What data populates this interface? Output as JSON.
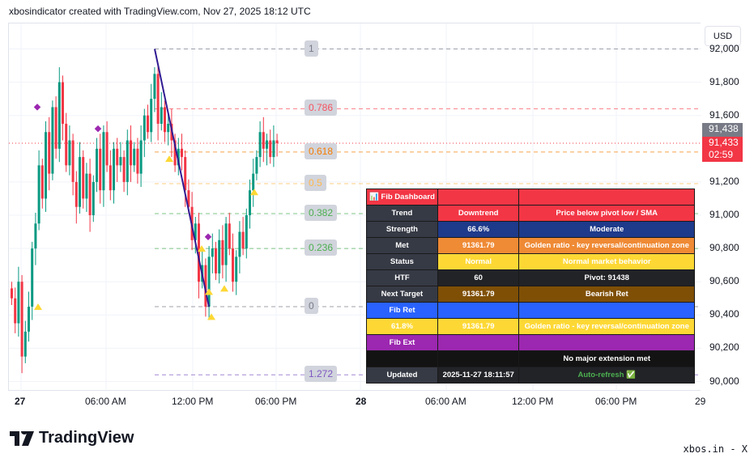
{
  "title": "xbosindicator created with TradingView.com, Nov 27, 2025 18:12 UTC",
  "currency": "USD",
  "price_axis": [
    "92,000",
    "91,800",
    "91,600",
    "91,200",
    "91,000",
    "90,800",
    "90,600",
    "90,400",
    "90,200",
    "90,000"
  ],
  "price_axis_values": [
    92000,
    91800,
    91600,
    91200,
    91000,
    90800,
    90600,
    90400,
    90200,
    90000
  ],
  "pivot_tag": "91,438",
  "last_price_tag": "91,433",
  "countdown": "02:59",
  "time_axis": [
    "27",
    "06:00 AM",
    "12:00 PM",
    "06:00 PM",
    "28",
    "06:00 AM",
    "12:00 PM",
    "06:00 PM",
    "29"
  ],
  "fib_levels": [
    {
      "label": "1",
      "price": 92000,
      "color": "#787b86"
    },
    {
      "label": "0.786",
      "price": 91640,
      "color": "#f7525f"
    },
    {
      "label": "0.618",
      "price": 91380,
      "color": "#f57c00"
    },
    {
      "label": "0.5",
      "price": 91190,
      "color": "#ffb74d"
    },
    {
      "label": "0.382",
      "price": 91010,
      "color": "#4caf50"
    },
    {
      "label": "0.236",
      "price": 90800,
      "color": "#4caf50"
    },
    {
      "label": "0",
      "price": 90450,
      "color": "#787b86"
    },
    {
      "label": "1.272",
      "price": 90040,
      "color": "#7e57c2"
    }
  ],
  "closes": [
    90500,
    90350,
    90600,
    90150,
    90300,
    90450,
    90800,
    90950,
    91300,
    91100,
    91500,
    91250,
    91650,
    91400,
    91800,
    91550,
    91300,
    91450,
    91200,
    91050,
    91350,
    91100,
    91250,
    91000,
    91200,
    91400,
    91150,
    91500,
    91300,
    91150,
    91400,
    91300,
    91350,
    91200,
    91450,
    91300,
    91400,
    91250,
    91450,
    91600,
    91500,
    91700,
    91850,
    91550,
    91650,
    91500,
    91550,
    91450,
    91300,
    91400,
    91350,
    91150,
    91050,
    90850,
    90950,
    90600,
    90700,
    90450,
    90750,
    90800,
    90650,
    90850,
    90700,
    90950,
    90800,
    90600,
    90750,
    90900,
    90800,
    91000,
    91150,
    91250,
    91350,
    91500,
    91400,
    91450,
    91350,
    91450,
    91433
  ],
  "colors": {
    "up": "#089981",
    "down": "#f23645",
    "pivot": "#787b86",
    "last": "#f23645"
  },
  "dashboard": {
    "rows": [
      {
        "c": [
          "📊 Fib Dashboard",
          "",
          ""
        ],
        "bg": [
          "#f23645",
          "#f23645",
          "#f23645"
        ]
      },
      {
        "c": [
          "Trend",
          "Downtrend",
          "Price below pivot low / SMA"
        ],
        "bg": [
          "#363a45",
          "#f23645",
          "#f23645"
        ]
      },
      {
        "c": [
          "Strength",
          "66.6%",
          "Moderate"
        ],
        "bg": [
          "#363a45",
          "#1e3a8a",
          "#1e3a8a"
        ]
      },
      {
        "c": [
          "Met",
          "91361.79",
          "Golden ratio - key reversal/continuation zone"
        ],
        "bg": [
          "#363a45",
          "#ef8a35",
          "#ef8a35"
        ]
      },
      {
        "c": [
          "Status",
          "Normal",
          "Normal market behavior"
        ],
        "bg": [
          "#363a45",
          "#fdd835",
          "#fdd835"
        ]
      },
      {
        "c": [
          "HTF",
          "60",
          "Pivot: 91438"
        ],
        "bg": [
          "#363a45",
          "#222327",
          "#222327"
        ]
      },
      {
        "c": [
          "Next Target",
          "91361.79",
          "Bearish Ret"
        ],
        "bg": [
          "#363a45",
          "#7f4f06",
          "#7f4f06"
        ]
      },
      {
        "c": [
          "Fib Ret",
          "",
          ""
        ],
        "bg": [
          "#2962ff",
          "#2962ff",
          "#2962ff"
        ]
      },
      {
        "c": [
          "61.8%",
          "91361.79",
          "Golden ratio - key reversal/continuation zone"
        ],
        "bg": [
          "#fdd835",
          "#fdd835",
          "#fdd835"
        ]
      },
      {
        "c": [
          "Fib Ext",
          "",
          ""
        ],
        "bg": [
          "#9c27b0",
          "#9c27b0",
          "#9c27b0"
        ]
      },
      {
        "c": [
          "",
          "",
          "No major extension met"
        ],
        "bg": [
          "#131313",
          "#131313",
          "#131313"
        ]
      },
      {
        "c": [
          "Updated",
          "2025-11-27 18:11:57",
          "Auto-refresh ✅"
        ],
        "bg": [
          "#363a45",
          "#222327",
          "#222327"
        ]
      }
    ]
  },
  "brand": "TradingView",
  "credit": "xbos.in - X"
}
